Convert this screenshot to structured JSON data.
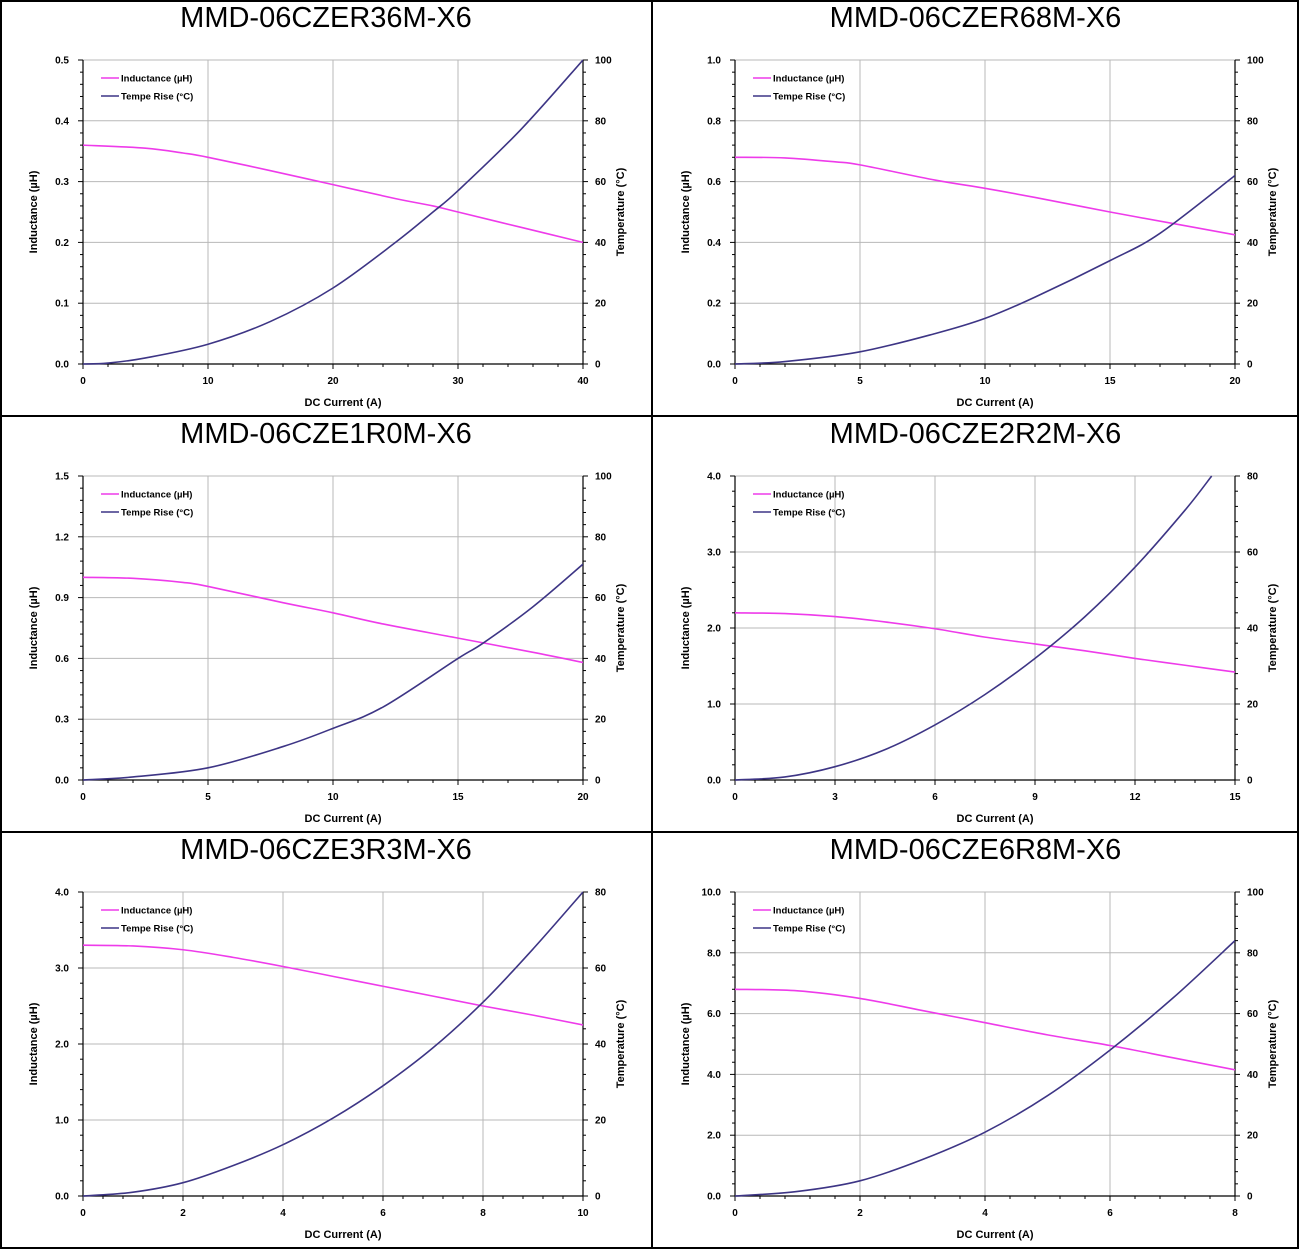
{
  "colors": {
    "inductance": "#ee3bea",
    "temperature": "#3d3585",
    "grid": "#b8b8b8",
    "axis": "#000000",
    "border": "#000000"
  },
  "legend": {
    "inductance": "Inductance (µH)",
    "temperature": "Tempe Rise (°C)"
  },
  "axis_labels": {
    "x": "DC Current (A)",
    "y_left": "Inductance (µH)",
    "y_right": "Temperature (°C)"
  },
  "chart_data": [
    {
      "type": "line",
      "title": "MMD-06CZER36M-X6",
      "xlabel": "DC Current (A)",
      "ylabel": "Inductance (µH)",
      "y2label": "Temperature (°C)",
      "xlim": [
        0,
        40
      ],
      "xticks": [
        0,
        10,
        20,
        30,
        40
      ],
      "xtick_labels": [
        "0",
        "10",
        "20",
        "30",
        "40"
      ],
      "ylim": [
        0,
        0.5
      ],
      "yticks": [
        0,
        0.1,
        0.2,
        0.3,
        0.4,
        0.5
      ],
      "ytick_labels": [
        "0.0",
        "0.1",
        "0.2",
        "0.3",
        "0.4",
        "0.5"
      ],
      "y2lim": [
        0,
        100
      ],
      "y2ticks": [
        0,
        20,
        40,
        60,
        80,
        100
      ],
      "y2tick_labels": [
        "0",
        "20",
        "40",
        "60",
        "80",
        "100"
      ],
      "grid": true,
      "legend_position": "top-left",
      "series": [
        {
          "name": "Inductance (µH)",
          "axis": "left",
          "x": [
            0,
            5,
            8,
            10,
            15,
            20,
            25,
            28,
            30,
            35,
            40
          ],
          "values": [
            0.36,
            0.355,
            0.347,
            0.34,
            0.318,
            0.295,
            0.272,
            0.26,
            0.25,
            0.225,
            0.2
          ]
        },
        {
          "name": "Tempe Rise (°C)",
          "axis": "right",
          "x": [
            0,
            2,
            5,
            10,
            15,
            20,
            25,
            28,
            30,
            35,
            40
          ],
          "values": [
            0,
            0.3,
            2,
            6.5,
            14,
            25,
            40,
            50,
            57,
            77,
            100
          ]
        }
      ]
    },
    {
      "type": "line",
      "title": "MMD-06CZER68M-X6",
      "xlabel": "DC Current (A)",
      "ylabel": "Inductance (µH)",
      "y2label": "Temperature (°C)",
      "xlim": [
        0,
        20
      ],
      "xticks": [
        0,
        5,
        10,
        15,
        20
      ],
      "xtick_labels": [
        "0",
        "5",
        "10",
        "15",
        "20"
      ],
      "ylim": [
        0,
        1.0
      ],
      "yticks": [
        0,
        0.2,
        0.4,
        0.6,
        0.8,
        1.0
      ],
      "ytick_labels": [
        "0.0",
        "0.2",
        "0.4",
        "0.6",
        "0.8",
        "1.0"
      ],
      "y2lim": [
        0,
        100
      ],
      "y2ticks": [
        0,
        20,
        40,
        60,
        80,
        100
      ],
      "y2tick_labels": [
        "0",
        "20",
        "40",
        "60",
        "80",
        "100"
      ],
      "grid": true,
      "legend_position": "top-left",
      "series": [
        {
          "name": "Inductance (µH)",
          "axis": "left",
          "x": [
            0,
            2,
            4,
            5,
            8,
            10,
            12,
            15,
            18,
            20
          ],
          "values": [
            0.68,
            0.678,
            0.665,
            0.655,
            0.605,
            0.578,
            0.548,
            0.5,
            0.455,
            0.425
          ]
        },
        {
          "name": "Tempe Rise (°C)",
          "axis": "right",
          "x": [
            0,
            2,
            5,
            8,
            10,
            12,
            15,
            17,
            20
          ],
          "values": [
            0,
            0.8,
            4,
            10,
            15,
            22,
            34,
            43,
            62
          ]
        }
      ]
    },
    {
      "type": "line",
      "title": "MMD-06CZE1R0M-X6",
      "xlabel": "DC Current (A)",
      "ylabel": "Inductance (µH)",
      "y2label": "Temperature (°C)",
      "xlim": [
        0,
        20
      ],
      "xticks": [
        0,
        5,
        10,
        15,
        20
      ],
      "xtick_labels": [
        "0",
        "5",
        "10",
        "15",
        "20"
      ],
      "ylim": [
        0,
        1.5
      ],
      "yticks": [
        0,
        0.3,
        0.6,
        0.9,
        1.2,
        1.5
      ],
      "ytick_labels": [
        "0.0",
        "0.3",
        "0.6",
        "0.9",
        "1.2",
        "1.5"
      ],
      "y2lim": [
        0,
        100
      ],
      "y2ticks": [
        0,
        20,
        40,
        60,
        80,
        100
      ],
      "y2tick_labels": [
        "0",
        "20",
        "40",
        "60",
        "80",
        "100"
      ],
      "grid": true,
      "legend_position": "top-left",
      "series": [
        {
          "name": "Inductance (µH)",
          "axis": "left",
          "x": [
            0,
            2,
            4,
            5,
            8,
            10,
            12,
            15,
            18,
            20
          ],
          "values": [
            1.0,
            0.995,
            0.975,
            0.955,
            0.875,
            0.825,
            0.77,
            0.7,
            0.63,
            0.58
          ]
        },
        {
          "name": "Tempe Rise (°C)",
          "axis": "right",
          "x": [
            0,
            2,
            5,
            8,
            10,
            12,
            15,
            16,
            18,
            20
          ],
          "values": [
            0,
            1,
            4,
            11,
            17,
            24,
            40,
            45,
            57,
            71
          ]
        }
      ]
    },
    {
      "type": "line",
      "title": "MMD-06CZE2R2M-X6",
      "xlabel": "DC Current (A)",
      "ylabel": "Inductance (µH)",
      "y2label": "Temperature (°C)",
      "xlim": [
        0,
        15
      ],
      "xticks": [
        0,
        3,
        6,
        9,
        12,
        15
      ],
      "xtick_labels": [
        "0",
        "3",
        "6",
        "9",
        "12",
        "15"
      ],
      "ylim": [
        0,
        4.0
      ],
      "yticks": [
        0,
        1,
        2,
        3,
        4
      ],
      "ytick_labels": [
        "0.0",
        "1.0",
        "2.0",
        "3.0",
        "4.0"
      ],
      "y2lim": [
        0,
        80
      ],
      "y2ticks": [
        0,
        20,
        40,
        60,
        80
      ],
      "y2tick_labels": [
        "0",
        "20",
        "40",
        "60",
        "80"
      ],
      "grid": true,
      "legend_position": "top-left",
      "series": [
        {
          "name": "Inductance (µH)",
          "axis": "left",
          "x": [
            0,
            1.5,
            3,
            4.5,
            6,
            7.5,
            9,
            10.5,
            12,
            13.5,
            15
          ],
          "values": [
            2.2,
            2.19,
            2.15,
            2.08,
            1.99,
            1.88,
            1.79,
            1.7,
            1.6,
            1.51,
            1.42
          ]
        },
        {
          "name": "Tempe Rise (°C)",
          "axis": "right",
          "x": [
            0,
            1.5,
            3,
            4.5,
            6,
            7.5,
            9,
            10.5,
            12,
            13.5,
            14.3
          ],
          "values": [
            0,
            0.8,
            3.5,
            8,
            14.5,
            22.5,
            32,
            43,
            56,
            71,
            80
          ]
        }
      ]
    },
    {
      "type": "line",
      "title": "MMD-06CZE3R3M-X6",
      "xlabel": "DC Current (A)",
      "ylabel": "Inductance (µH)",
      "y2label": "Temperature (°C)",
      "xlim": [
        0,
        10
      ],
      "xticks": [
        0,
        2,
        4,
        6,
        8,
        10
      ],
      "xtick_labels": [
        "0",
        "2",
        "4",
        "6",
        "8",
        "10"
      ],
      "ylim": [
        0,
        4.0
      ],
      "yticks": [
        0,
        1,
        2,
        3,
        4
      ],
      "ytick_labels": [
        "0.0",
        "1.0",
        "2.0",
        "3.0",
        "4.0"
      ],
      "y2lim": [
        0,
        80
      ],
      "y2ticks": [
        0,
        20,
        40,
        60,
        80
      ],
      "y2tick_labels": [
        "0",
        "20",
        "40",
        "60",
        "80"
      ],
      "grid": true,
      "legend_position": "top-left",
      "series": [
        {
          "name": "Inductance (µH)",
          "axis": "left",
          "x": [
            0,
            1,
            2,
            3,
            4,
            5,
            6,
            7,
            8,
            9,
            10
          ],
          "values": [
            3.3,
            3.29,
            3.24,
            3.14,
            3.02,
            2.89,
            2.76,
            2.63,
            2.5,
            2.38,
            2.25
          ]
        },
        {
          "name": "Tempe Rise (°C)",
          "axis": "right",
          "x": [
            0,
            1,
            2,
            3,
            4,
            5,
            6,
            7,
            8,
            9,
            10
          ],
          "values": [
            0,
            1,
            3.5,
            8,
            13.5,
            20.5,
            29,
            39,
            51,
            65,
            80
          ]
        }
      ]
    },
    {
      "type": "line",
      "title": "MMD-06CZE6R8M-X6",
      "xlabel": "DC Current (A)",
      "ylabel": "Inductance (µH)",
      "y2label": "Temperature (°C)",
      "xlim": [
        0,
        8
      ],
      "xticks": [
        0,
        2,
        4,
        6,
        8
      ],
      "xtick_labels": [
        "0",
        "2",
        "4",
        "6",
        "8"
      ],
      "ylim": [
        0,
        10.0
      ],
      "yticks": [
        0,
        2,
        4,
        6,
        8,
        10
      ],
      "ytick_labels": [
        "0.0",
        "2.0",
        "4.0",
        "6.0",
        "8.0",
        "10.0"
      ],
      "y2lim": [
        0,
        100
      ],
      "y2ticks": [
        0,
        20,
        40,
        60,
        80,
        100
      ],
      "y2tick_labels": [
        "0",
        "20",
        "40",
        "60",
        "80",
        "100"
      ],
      "grid": true,
      "legend_position": "top-left",
      "series": [
        {
          "name": "Inductance (µH)",
          "axis": "left",
          "x": [
            0,
            1,
            2,
            3,
            4,
            5,
            6,
            7,
            8
          ],
          "values": [
            6.8,
            6.75,
            6.5,
            6.1,
            5.7,
            5.3,
            4.95,
            4.55,
            4.15
          ]
        },
        {
          "name": "Tempe Rise (°C)",
          "axis": "right",
          "x": [
            0,
            1,
            2,
            3,
            4,
            5,
            6,
            7,
            8
          ],
          "values": [
            0,
            1.5,
            5,
            12,
            21,
            33,
            48,
            65,
            84
          ]
        }
      ]
    }
  ]
}
